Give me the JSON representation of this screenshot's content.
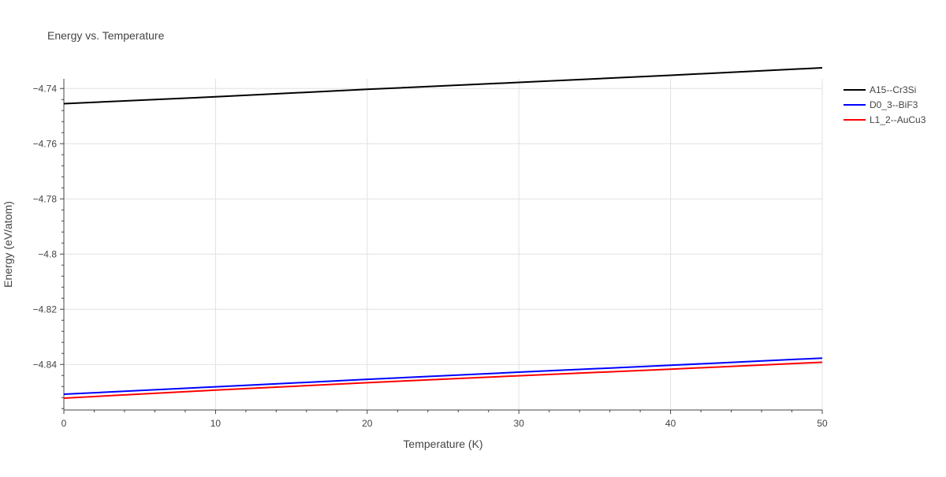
{
  "chart_data": {
    "type": "line",
    "title": "Energy vs. Temperature",
    "xlabel": "Temperature (K)",
    "ylabel": "Energy (eV/atom)",
    "xlim": [
      0,
      50
    ],
    "ylim": [
      -4.8565,
      -4.7365
    ],
    "x_ticks": [
      0,
      10,
      20,
      30,
      40,
      50
    ],
    "x_tick_labels": [
      "0",
      "10",
      "20",
      "30",
      "40",
      "50"
    ],
    "y_ticks": [
      -4.74,
      -4.76,
      -4.78,
      -4.8,
      -4.82,
      -4.84
    ],
    "y_tick_labels": [
      "−4.74",
      "−4.76",
      "−4.78",
      "−4.8",
      "−4.82",
      "−4.84"
    ],
    "grid": true,
    "legend_position": "top-right outside",
    "series": [
      {
        "name": "A15--Cr3Si",
        "color": "#000000",
        "x": [
          0,
          10,
          20,
          30,
          40,
          50
        ],
        "y": [
          -4.7455,
          -4.743,
          -4.7403,
          -4.7378,
          -4.7352,
          -4.7325
        ]
      },
      {
        "name": "D0_3--BiF3",
        "color": "#0000ff",
        "x": [
          0,
          10,
          20,
          30,
          40,
          50
        ],
        "y": [
          -4.8508,
          -4.8481,
          -4.8454,
          -4.8428,
          -4.8403,
          -4.8377
        ]
      },
      {
        "name": "L1_2--AuCu3",
        "color": "#ff0000",
        "x": [
          0,
          10,
          20,
          30,
          40,
          50
        ],
        "y": [
          -4.8522,
          -4.8493,
          -4.8466,
          -4.8441,
          -4.8417,
          -4.8392
        ]
      }
    ]
  }
}
